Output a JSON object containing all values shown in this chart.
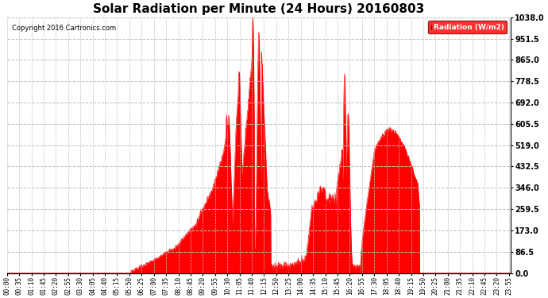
{
  "title": "Solar Radiation per Minute (24 Hours) 20160803",
  "copyright_text": "Copyright 2016 Cartronics.com",
  "legend_label": "Radiation (W/m2)",
  "fill_color": "#FF0000",
  "line_color": "#FF0000",
  "background_color": "#FFFFFF",
  "plot_bg_color": "#FFFFFF",
  "grid_color": "#C0C0C0",
  "dashed_baseline_color": "#FF0000",
  "yticks": [
    0.0,
    86.5,
    173.0,
    259.5,
    346.0,
    432.5,
    519.0,
    605.5,
    692.0,
    778.5,
    865.0,
    951.5,
    1038.0
  ],
  "ymax": 1038.0,
  "ymin": 0.0,
  "total_minutes": 1440,
  "xtick_step": 35
}
